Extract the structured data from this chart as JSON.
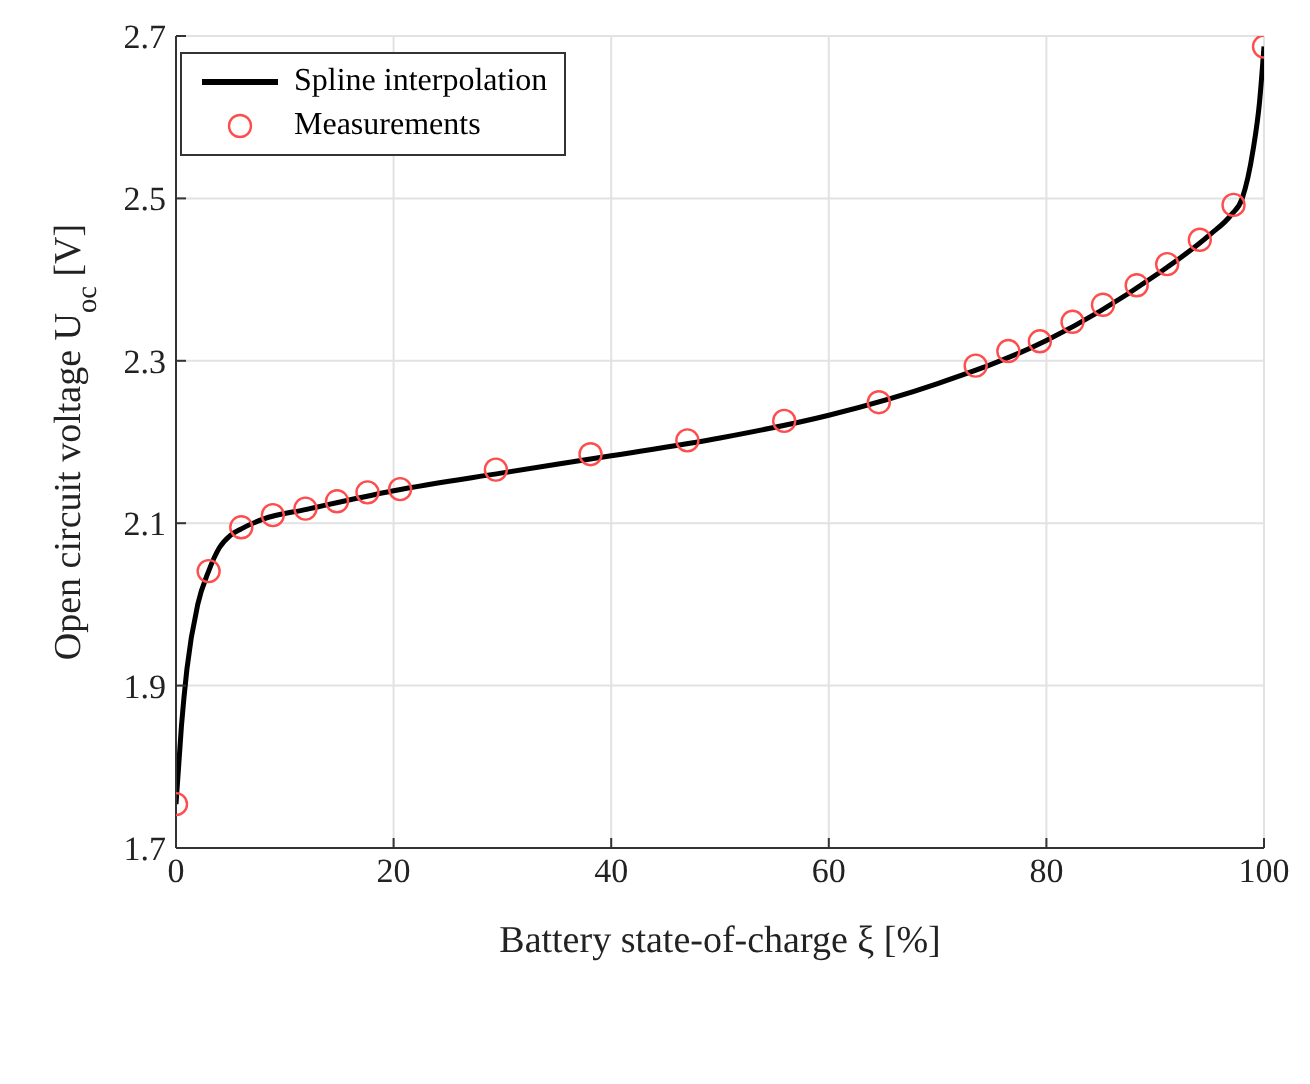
{
  "chart_data": {
    "type": "line",
    "xlabel": "Battery state-of-charge  ξ [%]",
    "ylabel": "Open circuit voltage  U$_{oc}$ [V]",
    "xlim": [
      0,
      100
    ],
    "xticks": [
      0,
      20,
      40,
      60,
      80,
      100
    ],
    "ylim": [
      1.7,
      2.7
    ],
    "yticks": [
      1.7,
      1.9,
      2.1,
      2.3,
      2.5,
      2.7
    ],
    "grid": true,
    "legend": "top left",
    "series": [
      {
        "name": "Spline interpolation",
        "color": "#000000",
        "marker": "none",
        "line_style": "solid",
        "x": [
          0,
          0.5,
          1,
          2,
          3,
          4,
          5,
          6,
          8,
          12,
          20,
          30,
          40,
          50,
          60,
          70,
          80,
          90,
          95,
          97,
          98,
          99,
          99.6,
          100
        ],
        "values": [
          1.754,
          1.85,
          1.92,
          2.0,
          2.041,
          2.07,
          2.085,
          2.093,
          2.105,
          2.117,
          2.14,
          2.162,
          2.183,
          2.205,
          2.233,
          2.272,
          2.325,
          2.405,
          2.455,
          2.48,
          2.5,
          2.56,
          2.62,
          2.687
        ]
      },
      {
        "name": "Measurements",
        "type": "scatter",
        "color": "#ff4d4d",
        "marker": "circle",
        "x": [
          0,
          3.0,
          6.0,
          8.9,
          11.9,
          14.8,
          17.6,
          20.6,
          29.4,
          38.1,
          47.0,
          55.9,
          64.6,
          73.5,
          76.5,
          79.4,
          82.4,
          85.2,
          88.3,
          91.1,
          94.1,
          97.2,
          100
        ],
        "values": [
          1.754,
          2.041,
          2.095,
          2.11,
          2.118,
          2.127,
          2.138,
          2.142,
          2.166,
          2.185,
          2.202,
          2.226,
          2.249,
          2.294,
          2.312,
          2.324,
          2.348,
          2.369,
          2.393,
          2.419,
          2.449,
          2.492,
          2.687
        ]
      }
    ]
  }
}
